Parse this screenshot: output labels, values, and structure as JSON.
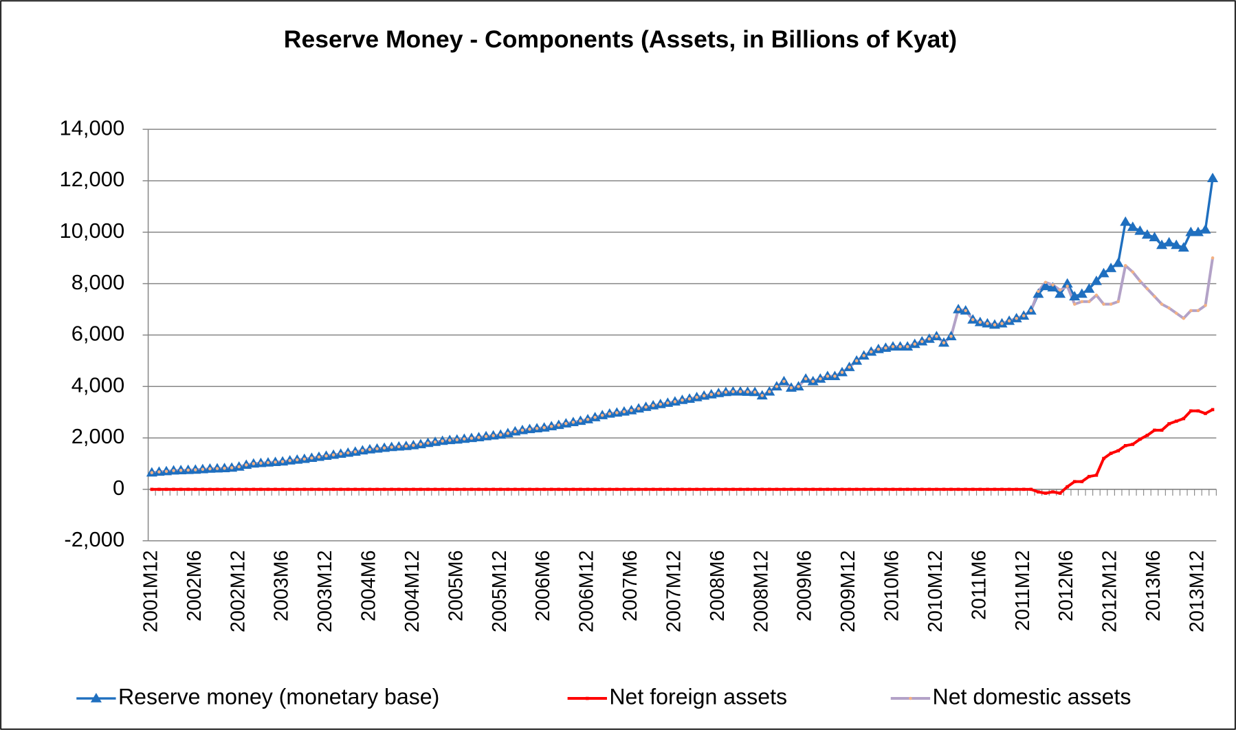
{
  "chart_data": {
    "type": "line",
    "title": "Reserve Money - Components (Assets, in Billions of Kyat)",
    "categories": [
      "2001M12",
      null,
      null,
      null,
      null,
      null,
      "2002M6",
      null,
      null,
      null,
      null,
      null,
      "2002M12",
      null,
      null,
      null,
      null,
      null,
      "2003M6",
      null,
      null,
      null,
      null,
      null,
      "2003M12",
      null,
      null,
      null,
      null,
      null,
      "2004M6",
      null,
      null,
      null,
      null,
      null,
      "2004M12",
      null,
      null,
      null,
      null,
      null,
      "2005M6",
      null,
      null,
      null,
      null,
      null,
      "2005M12",
      null,
      null,
      null,
      null,
      null,
      "2006M6",
      null,
      null,
      null,
      null,
      null,
      "2006M12",
      null,
      null,
      null,
      null,
      null,
      "2007M6",
      null,
      null,
      null,
      null,
      null,
      "2007M12",
      null,
      null,
      null,
      null,
      null,
      "2008M6",
      null,
      null,
      null,
      null,
      null,
      "2008M12",
      null,
      null,
      null,
      null,
      null,
      "2009M6",
      null,
      null,
      null,
      null,
      null,
      "2009M12",
      null,
      null,
      null,
      null,
      null,
      "2010M6",
      null,
      null,
      null,
      null,
      null,
      "2010M12",
      null,
      null,
      null,
      null,
      null,
      "2011M6",
      null,
      null,
      null,
      null,
      null,
      "2011M12",
      null,
      null,
      null,
      null,
      null,
      "2012M6",
      null,
      null,
      null,
      null,
      null,
      "2012M12",
      null,
      null,
      null,
      null,
      null,
      "2013M6",
      null,
      null,
      null,
      null,
      null,
      "2013M12",
      null,
      null
    ],
    "series": [
      {
        "name": "Reserve money (monetary base)",
        "color": "#1f6fbf",
        "marker": "triangle",
        "values": [
          650,
          680,
          700,
          730,
          740,
          750,
          760,
          780,
          800,
          810,
          820,
          840,
          880,
          950,
          1000,
          1020,
          1040,
          1060,
          1080,
          1120,
          1150,
          1180,
          1220,
          1260,
          1300,
          1340,
          1380,
          1420,
          1460,
          1510,
          1550,
          1580,
          1610,
          1640,
          1660,
          1680,
          1710,
          1750,
          1800,
          1840,
          1880,
          1910,
          1930,
          1960,
          1990,
          2020,
          2060,
          2090,
          2120,
          2180,
          2250,
          2300,
          2340,
          2370,
          2400,
          2450,
          2500,
          2560,
          2610,
          2660,
          2720,
          2800,
          2880,
          2940,
          2980,
          3020,
          3070,
          3140,
          3200,
          3260,
          3310,
          3360,
          3410,
          3470,
          3520,
          3580,
          3640,
          3690,
          3740,
          3780,
          3800,
          3800,
          3790,
          3780,
          3650,
          3800,
          4000,
          4200,
          3950,
          4000,
          4300,
          4200,
          4300,
          4400,
          4400,
          4550,
          4750,
          5000,
          5200,
          5350,
          5450,
          5500,
          5550,
          5550,
          5550,
          5650,
          5750,
          5850,
          5950,
          5700,
          5950,
          7000,
          6950,
          6600,
          6500,
          6450,
          6400,
          6450,
          6550,
          6650,
          6750,
          6950,
          7600,
          7900,
          7850,
          7600,
          8000,
          7500,
          7600,
          7800,
          8100,
          8400,
          8600,
          8800,
          10400,
          10200,
          10050,
          9900,
          9800,
          9500,
          9600,
          9500,
          9400,
          10000,
          10000,
          10100,
          12100
        ]
      },
      {
        "name": "Net foreign assets",
        "color": "#ff0000",
        "marker": "square",
        "values": [
          0,
          0,
          0,
          0,
          0,
          0,
          0,
          0,
          0,
          0,
          0,
          0,
          0,
          0,
          0,
          0,
          0,
          0,
          0,
          0,
          0,
          0,
          0,
          0,
          0,
          0,
          0,
          0,
          0,
          0,
          0,
          0,
          0,
          0,
          0,
          0,
          0,
          0,
          0,
          0,
          0,
          0,
          0,
          0,
          0,
          0,
          0,
          0,
          0,
          0,
          0,
          0,
          0,
          0,
          0,
          0,
          0,
          0,
          0,
          0,
          0,
          0,
          0,
          0,
          0,
          0,
          0,
          0,
          0,
          0,
          0,
          0,
          0,
          0,
          0,
          0,
          0,
          0,
          0,
          0,
          0,
          0,
          0,
          0,
          0,
          0,
          0,
          0,
          0,
          0,
          0,
          0,
          0,
          0,
          0,
          0,
          0,
          0,
          0,
          0,
          0,
          0,
          0,
          0,
          0,
          0,
          0,
          0,
          0,
          0,
          0,
          0,
          0,
          0,
          0,
          0,
          0,
          0,
          0,
          0,
          0,
          0,
          -100,
          -150,
          -100,
          -150,
          100,
          300,
          300,
          500,
          550,
          1200,
          1400,
          1500,
          1700,
          1750,
          1950,
          2100,
          2300,
          2300,
          2550,
          2650,
          2750,
          3050,
          3050,
          2950,
          3100
        ]
      },
      {
        "name": "Net domestic assets",
        "color": "#b3a2c7",
        "marker_color": "#f4b183",
        "marker": "dot",
        "values": [
          650,
          680,
          700,
          730,
          740,
          750,
          760,
          780,
          800,
          810,
          820,
          840,
          880,
          950,
          1000,
          1020,
          1040,
          1060,
          1080,
          1120,
          1150,
          1180,
          1220,
          1260,
          1300,
          1340,
          1380,
          1420,
          1460,
          1510,
          1550,
          1580,
          1610,
          1640,
          1660,
          1680,
          1710,
          1750,
          1800,
          1840,
          1880,
          1910,
          1930,
          1960,
          1990,
          2020,
          2060,
          2090,
          2120,
          2180,
          2250,
          2300,
          2340,
          2370,
          2400,
          2450,
          2500,
          2560,
          2610,
          2660,
          2720,
          2800,
          2880,
          2940,
          2980,
          3020,
          3070,
          3140,
          3200,
          3260,
          3310,
          3360,
          3410,
          3470,
          3520,
          3580,
          3640,
          3690,
          3740,
          3780,
          3800,
          3800,
          3790,
          3780,
          3650,
          3800,
          4000,
          4200,
          3950,
          4000,
          4300,
          4200,
          4300,
          4400,
          4400,
          4550,
          4750,
          5000,
          5200,
          5350,
          5450,
          5500,
          5550,
          5550,
          5550,
          5650,
          5750,
          5850,
          5950,
          5700,
          5950,
          7000,
          6950,
          6600,
          6500,
          6450,
          6400,
          6450,
          6550,
          6650,
          6750,
          6950,
          7700,
          8050,
          7950,
          7750,
          7900,
          7200,
          7300,
          7300,
          7550,
          7200,
          7200,
          7300,
          8700,
          8450,
          8100,
          7800,
          7500,
          7200,
          7050,
          6850,
          6650,
          6950,
          6950,
          7150,
          9000
        ]
      }
    ],
    "ylim": [
      -2000,
      14000
    ],
    "yticks": [
      {
        "value": -2000,
        "label": "-2,000"
      },
      0,
      {
        "value": 2000,
        "label": "2,000"
      },
      {
        "value": 4000,
        "label": "4,000"
      },
      {
        "value": 6000,
        "label": "6,000"
      },
      {
        "value": 8000,
        "label": "8,000"
      },
      {
        "value": 10000,
        "label": "10,000"
      },
      {
        "value": 12000,
        "label": "12,000"
      },
      {
        "value": 14000,
        "label": "14,000"
      }
    ],
    "grid": true,
    "legend": "bottom"
  }
}
